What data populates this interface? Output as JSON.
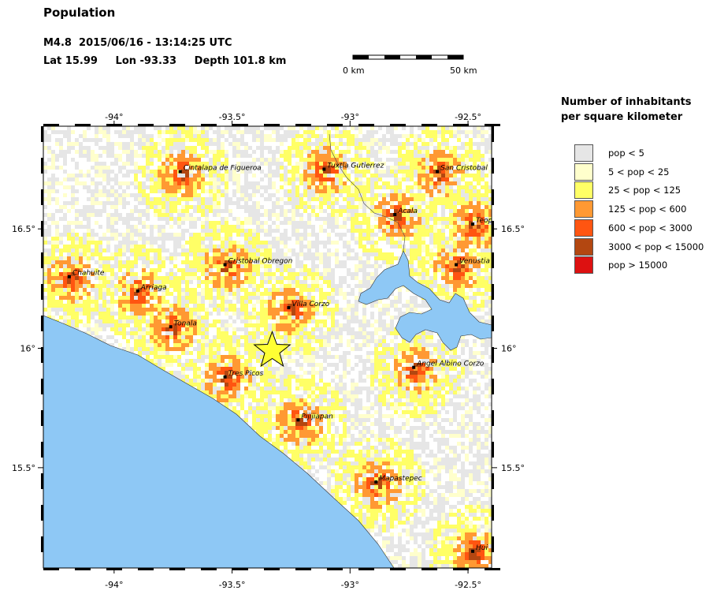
{
  "header": {
    "title": "Population",
    "line1": "M4.8  2015/06/16 - 13:14:25 UTC",
    "line2": "Lat 15.99     Lon -93.33     Depth 101.8 km"
  },
  "scalebar": {
    "left_label": "0 km",
    "right_label": "50 km"
  },
  "legend": {
    "title_line1": "Number of inhabitants",
    "title_line2": "per square kilometer",
    "items": [
      {
        "label": "pop < 5",
        "color": "#e6e6e6"
      },
      {
        "label": "5 < pop < 25",
        "color": "#ffffcc"
      },
      {
        "label": "25 < pop < 125",
        "color": "#ffff66"
      },
      {
        "label": "125 < pop < 600",
        "color": "#ff9933"
      },
      {
        "label": "600 < pop < 3000",
        "color": "#ff5511"
      },
      {
        "label": "3000 < pop < 15000",
        "color": "#b34711"
      },
      {
        "label": "pop > 15000",
        "color": "#dd1111"
      }
    ]
  },
  "map": {
    "extent": {
      "lon_min": -94.3,
      "lon_max": -92.4,
      "lat_min": 15.08,
      "lat_max": 16.93
    },
    "lon_ticks": [
      {
        "value": -94,
        "label": "-94°"
      },
      {
        "value": -93.5,
        "label": "-93.5°"
      },
      {
        "value": -93,
        "label": "-93°"
      },
      {
        "value": -92.5,
        "label": "-92.5°"
      }
    ],
    "lat_ticks": [
      {
        "value": 16.5,
        "label": "16.5°"
      },
      {
        "value": 16,
        "label": "16°"
      },
      {
        "value": 15.5,
        "label": "15.5°"
      }
    ],
    "epicenter": {
      "lat": 15.99,
      "lon": -93.33
    },
    "colors": {
      "ocean": "#8ec8f5",
      "lake": "#8ec8f5",
      "land": "#ffffff",
      "epicenter": "#ffff33"
    },
    "cities": [
      {
        "name": "Cintalapa de Figueroa",
        "lon": -93.72,
        "lat": 16.74
      },
      {
        "name": "Tuxtla Gutierrez",
        "lon": -93.11,
        "lat": 16.75
      },
      {
        "name": "San Cristobal",
        "lon": -92.63,
        "lat": 16.74
      },
      {
        "name": "Acala",
        "lon": -92.81,
        "lat": 16.56
      },
      {
        "name": "Teop",
        "lon": -92.48,
        "lat": 16.52
      },
      {
        "name": "Chahuite",
        "lon": -94.19,
        "lat": 16.3
      },
      {
        "name": "Cristobal Obregon",
        "lon": -93.53,
        "lat": 16.35
      },
      {
        "name": "Venustia",
        "lon": -92.55,
        "lat": 16.35
      },
      {
        "name": "Arriaga",
        "lon": -93.9,
        "lat": 16.24
      },
      {
        "name": "Villa Corzo",
        "lon": -93.26,
        "lat": 16.17
      },
      {
        "name": "Tonala",
        "lon": -93.76,
        "lat": 16.09
      },
      {
        "name": "Angel Albino Corzo",
        "lon": -92.73,
        "lat": 15.92
      },
      {
        "name": "Tres Picos",
        "lon": -93.53,
        "lat": 15.88
      },
      {
        "name": "Pijijiapan",
        "lon": -93.22,
        "lat": 15.7
      },
      {
        "name": "Mapastepec",
        "lon": -92.89,
        "lat": 15.44
      },
      {
        "name": "Hui",
        "lon": -92.48,
        "lat": 15.15
      }
    ]
  }
}
